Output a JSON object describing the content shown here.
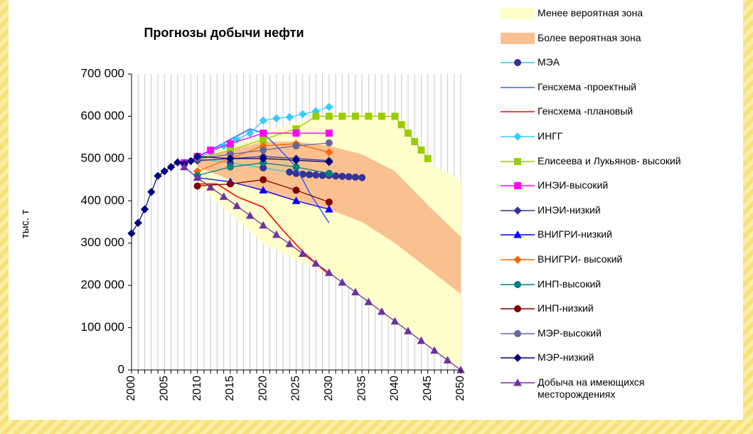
{
  "chart_data": {
    "type": "line",
    "title": "Прогнозы добычи нефти",
    "y_label": "тыс. т",
    "xlim": [
      2000,
      2050
    ],
    "xticks": [
      2000,
      2005,
      2010,
      2015,
      2020,
      2025,
      2030,
      2035,
      2040,
      2045,
      2050
    ],
    "x_minor_grid": [
      2000,
      2001,
      2002,
      2003,
      2004,
      2005,
      2006,
      2007,
      2008,
      2009,
      2010,
      2011,
      2012,
      2013,
      2014,
      2015,
      2016,
      2017,
      2018,
      2019,
      2020,
      2021,
      2022,
      2023,
      2024,
      2025,
      2026,
      2027,
      2028,
      2029,
      2030,
      2031,
      2032,
      2033,
      2034,
      2035,
      2036,
      2037,
      2038,
      2039,
      2040,
      2041,
      2042,
      2043,
      2044,
      2045,
      2046,
      2047,
      2048,
      2049,
      2050
    ],
    "ylim": [
      0,
      700000
    ],
    "yticks": [
      0,
      {
        "value": 100000,
        "label": "100 000"
      },
      {
        "value": 200000,
        "label": "200 000"
      },
      {
        "value": 300000,
        "label": "300 000"
      },
      {
        "value": 400000,
        "label": "400 000"
      },
      {
        "value": 500000,
        "label": "500 000"
      },
      {
        "value": 600000,
        "label": "600 000"
      },
      {
        "value": 700000,
        "label": "700 000"
      }
    ],
    "grid": "x",
    "legend": "right",
    "series": [
      {
        "name": "Менее вероятная зона",
        "kind": "area",
        "color": "#FFFFCC",
        "x": [
          2010,
          2020,
          2025,
          2030,
          2040,
          2045,
          2050
        ],
        "low": [
          440000,
          300000,
          260000,
          230000,
          110000,
          55000,
          0
        ],
        "high": [
          500000,
          560000,
          585000,
          600000,
          600000,
          490000,
          450000
        ]
      },
      {
        "name": "Более вероятная зона",
        "kind": "area",
        "color": "#FAC090",
        "x": [
          2010,
          2015,
          2020,
          2025,
          2030,
          2035,
          2040,
          2045,
          2050
        ],
        "low": [
          480000,
          450000,
          420000,
          400000,
          380000,
          350000,
          300000,
          240000,
          180000
        ],
        "high": [
          500000,
          520000,
          540000,
          540000,
          530000,
          510000,
          470000,
          390000,
          315000
        ]
      },
      {
        "name": "МЭА",
        "color": "#33CCCC",
        "marker": "circle",
        "marker_color": "#333399",
        "x": [
          2010,
          2015,
          2020,
          2024,
          2025,
          2026,
          2027,
          2028,
          2029,
          2030,
          2031,
          2032,
          2033,
          2034,
          2035
        ],
        "values": [
          500000,
          490000,
          478000,
          468000,
          465000,
          463000,
          462000,
          461000,
          460000,
          460000,
          459000,
          458000,
          457000,
          456000,
          455000
        ]
      },
      {
        "name": "Генсхема -проектный",
        "color": "#3366FF",
        "marker": "none",
        "x": [
          2009,
          2012,
          2015,
          2018,
          2020,
          2022,
          2025,
          2027,
          2030
        ],
        "values": [
          495000,
          520000,
          545000,
          570000,
          560000,
          530000,
          480000,
          420000,
          348000
        ]
      },
      {
        "name": "Генсхема -плановый",
        "color": "#FF0000",
        "marker": "none",
        "x": [
          2010,
          2013,
          2016,
          2020,
          2023,
          2026,
          2030
        ],
        "values": [
          440000,
          440000,
          410000,
          385000,
          330000,
          280000,
          225000
        ]
      },
      {
        "name": "ИНГГ",
        "color": "#33CCFF",
        "marker": "diamond",
        "x": [
          2010,
          2012,
          2014,
          2016,
          2018,
          2020,
          2022,
          2024,
          2026,
          2028,
          2030
        ],
        "values": [
          500000,
          515000,
          530000,
          545000,
          560000,
          590000,
          595000,
          598000,
          605000,
          612000,
          622000
        ]
      },
      {
        "name": "Елисеева и Лукьянов- высокий",
        "color": "#99CC00",
        "marker": "square",
        "x": [
          2010,
          2015,
          2020,
          2025,
          2028,
          2030,
          2032,
          2034,
          2036,
          2038,
          2040,
          2041,
          2042,
          2043,
          2044,
          2045
        ],
        "values": [
          500000,
          520000,
          545000,
          570000,
          600000,
          600000,
          600000,
          600000,
          600000,
          600000,
          600000,
          580000,
          560000,
          540000,
          520000,
          500000
        ]
      },
      {
        "name": "ИНЭИ-высокий",
        "color": "#FF00FF",
        "marker": "square",
        "x": [
          2008,
          2010,
          2012,
          2015,
          2020,
          2025,
          2030
        ],
        "values": [
          490000,
          505000,
          520000,
          535000,
          560000,
          560000,
          560000
        ]
      },
      {
        "name": "ИНЭИ-низкий",
        "color": "#333399",
        "marker": "diamond",
        "x": [
          2010,
          2015,
          2020,
          2025,
          2030
        ],
        "values": [
          495000,
          500000,
          505000,
          500000,
          495000
        ]
      },
      {
        "name": "ВНИГРИ-низкий",
        "color": "#0000FF",
        "marker": "triangle",
        "x": [
          2010,
          2015,
          2020,
          2025,
          2030
        ],
        "values": [
          455000,
          445000,
          425000,
          400000,
          380000
        ]
      },
      {
        "name": "ВНИГРИ- высокий",
        "color": "#FF6600",
        "marker": "diamond",
        "x": [
          2010,
          2015,
          2020,
          2025,
          2030
        ],
        "values": [
          470000,
          500000,
          530000,
          535000,
          515000
        ]
      },
      {
        "name": "ИНП-высокий",
        "color": "#008080",
        "marker": "circle",
        "x": [
          2010,
          2015,
          2020,
          2025,
          2030
        ],
        "values": [
          460000,
          480000,
          490000,
          480000,
          465000
        ]
      },
      {
        "name": "ИНП-низкий",
        "color": "#800000",
        "marker": "circle",
        "x": [
          2010,
          2015,
          2020,
          2025,
          2030
        ],
        "values": [
          435000,
          440000,
          450000,
          425000,
          397000
        ]
      },
      {
        "name": "МЭР-высокий",
        "color": "#666699",
        "marker": "circle",
        "x": [
          2010,
          2015,
          2020,
          2025,
          2030
        ],
        "values": [
          500000,
          510000,
          520000,
          530000,
          537000
        ]
      },
      {
        "name": "МЭР-низкий",
        "color": "#000080",
        "marker": "diamond",
        "x": [
          2000,
          2001,
          2002,
          2003,
          2004,
          2005,
          2006,
          2007,
          2008,
          2009,
          2010,
          2015,
          2020,
          2025,
          2030
        ],
        "values": [
          323000,
          348000,
          380000,
          421000,
          459000,
          470000,
          480000,
          491000,
          488000,
          494000,
          505000,
          500000,
          500000,
          496000,
          492000
        ]
      },
      {
        "name": "Добыча на имеющихся месторождениях",
        "color": "#7030A0",
        "marker": "triangle",
        "x": [
          2008,
          2010,
          2012,
          2014,
          2016,
          2018,
          2020,
          2022,
          2024,
          2026,
          2028,
          2030,
          2032,
          2034,
          2036,
          2038,
          2040,
          2042,
          2044,
          2046,
          2048,
          2050
        ],
        "values": [
          480000,
          455000,
          432000,
          410000,
          388000,
          365000,
          342000,
          320000,
          298000,
          275000,
          252000,
          230000,
          207000,
          184000,
          161000,
          138000,
          115000,
          92000,
          69000,
          46000,
          23000,
          0
        ]
      }
    ]
  }
}
